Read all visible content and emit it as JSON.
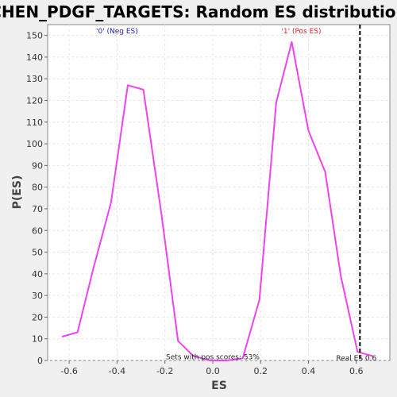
{
  "chart_data": {
    "type": "line",
    "title": "CHEN_PDGF_TARGETS: Random ES distribution",
    "xlabel": "ES",
    "ylabel": "P(ES)",
    "xlim": [
      -0.69,
      0.74
    ],
    "ylim": [
      0,
      155
    ],
    "xticks": [
      -0.6,
      -0.4,
      -0.2,
      0.0,
      0.2,
      0.4,
      0.6
    ],
    "xtick_labels": [
      "-0.6",
      "-0.4",
      "-0.2",
      "0.0",
      "0.2",
      "0.4",
      "0.6"
    ],
    "yticks": [
      0,
      10,
      20,
      30,
      40,
      50,
      60,
      70,
      80,
      90,
      100,
      110,
      120,
      130,
      140,
      150
    ],
    "ytick_labels": [
      "0",
      "10",
      "20",
      "30",
      "40",
      "50",
      "60",
      "70",
      "80",
      "90",
      "100",
      "110",
      "120",
      "130",
      "140",
      "150"
    ],
    "grid": true,
    "series": [
      {
        "color": "#ee44ee",
        "x": [
          -0.63,
          -0.565,
          -0.5,
          -0.425,
          -0.355,
          -0.29,
          -0.215,
          -0.145,
          -0.08,
          -0.01,
          0.06,
          0.125,
          0.195,
          0.265,
          0.33,
          0.4,
          0.47,
          0.535,
          0.605,
          0.67
        ],
        "y": [
          11,
          13,
          42,
          73,
          127,
          125,
          68,
          9,
          2,
          0,
          0,
          1,
          28,
          119,
          147,
          106,
          87,
          39,
          4,
          2
        ]
      }
    ],
    "vline": {
      "x": 0.615,
      "color": "#000000",
      "style": "dashed"
    },
    "annotations": [
      {
        "id": "neg",
        "text": "'0' (Neg ES)",
        "x": -0.4,
        "y": 151,
        "color": "#2222cc"
      },
      {
        "id": "pos",
        "text": "'1' (Pos ES)",
        "x": 0.37,
        "y": 151,
        "color": "#dd2222"
      },
      {
        "id": "pos-scores",
        "text": "Sets with pos scores: 53%",
        "x": 0.0,
        "y": 0.5,
        "color": "#222222"
      },
      {
        "id": "real-es",
        "text": "Real ES 0.6",
        "x": 0.6,
        "y": 0,
        "color": "#222222"
      }
    ]
  }
}
